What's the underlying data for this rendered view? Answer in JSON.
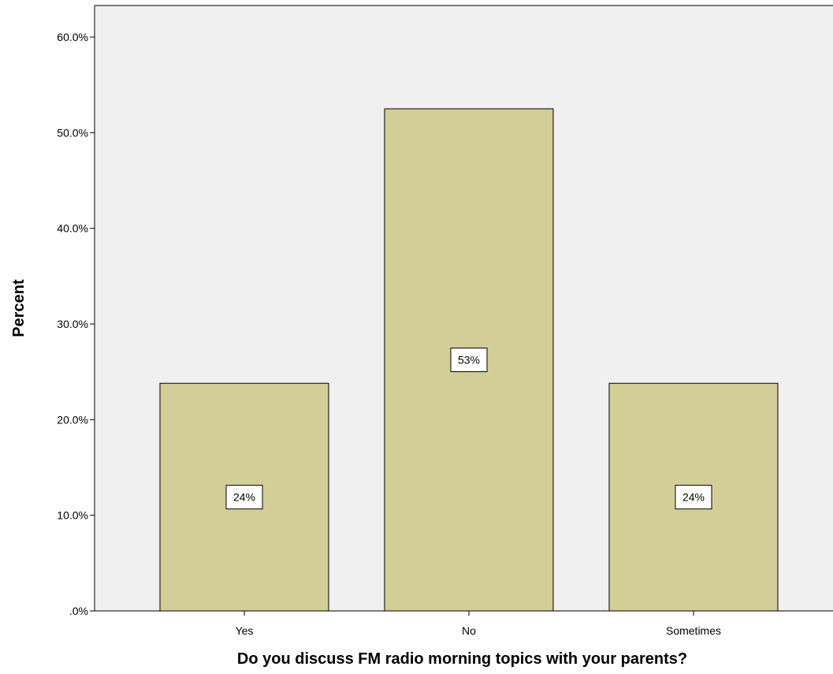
{
  "chart_data": {
    "type": "bar",
    "categories": [
      "Yes",
      "No",
      "Sometimes"
    ],
    "values": [
      23.8,
      52.5,
      23.8
    ],
    "data_labels": [
      "24%",
      "53%",
      "24%"
    ],
    "xlabel": "Do you discuss FM radio morning topics with your parents?",
    "ylabel": "Percent",
    "ylim": [
      0,
      60
    ],
    "yticks": [
      0,
      10,
      20,
      30,
      40,
      50,
      60
    ],
    "ytick_labels": [
      ".0%",
      "10.0%",
      "20.0%",
      "30.0%",
      "40.0%",
      "50.0%",
      "60.0%"
    ],
    "grid": false,
    "colors": {
      "bar_fill": "#D3CD97",
      "bar_stroke": "#000000",
      "plot_background": "#F0F0F0",
      "page_background": "#FFFFFF"
    }
  }
}
